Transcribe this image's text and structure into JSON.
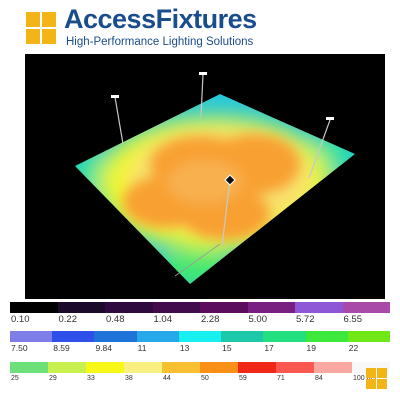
{
  "header": {
    "brand_part1": "Access",
    "brand_part2": "Fixtures",
    "tagline": "High-Performance Lighting Solutions",
    "brand_color": "#1a4d8c",
    "logo_color": "#f3b418",
    "logo_icon": "four-square-logo-icon"
  },
  "scene": {
    "description_icon": "photometric-plan-icon",
    "background_color": "#000000"
  },
  "legend": {
    "rows": [
      {
        "colors": [
          "#000000",
          "#1c0a2a",
          "#2e0a3e",
          "#420b4c",
          "#5b0c5c",
          "#7a1f82",
          "#8e57d8",
          "#a94aa8"
        ],
        "labels": [
          "0.10",
          "0.22",
          "0.48",
          "1.04",
          "2.28",
          "5.00",
          "5.72",
          "6.55"
        ]
      },
      {
        "colors": [
          "#7f7de8",
          "#2e50e8",
          "#1f73d8",
          "#27a8e8",
          "#18f0f0",
          "#1cc8a8",
          "#22e080",
          "#3ce83c",
          "#70e818"
        ],
        "labels": [
          "7.50",
          "8.59",
          "9.84",
          "11",
          "13",
          "15",
          "17",
          "19",
          "22"
        ]
      },
      {
        "colors": [
          "#6ee07a",
          "#c8f050",
          "#f8f818",
          "#f8f080",
          "#f8c030",
          "#f89018",
          "#f02818",
          "#f85850",
          "#f8a8a0",
          "#f8f8f8"
        ],
        "labels": [
          "25",
          "29",
          "33",
          "38",
          "44",
          "50",
          "59",
          "71",
          "84",
          "100 [fc]"
        ]
      }
    ]
  }
}
